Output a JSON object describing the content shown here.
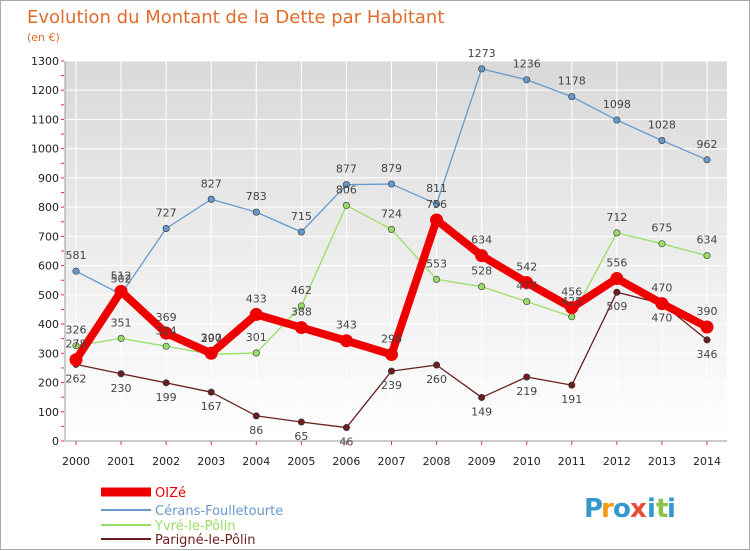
{
  "chart_data": {
    "type": "line",
    "title": "Evolution du Montant de la Dette par Habitant",
    "subtitle": "(en €)",
    "xlabel": "",
    "ylabel": "",
    "ylim": [
      0,
      1300
    ],
    "yticks": [
      0,
      100,
      200,
      300,
      400,
      500,
      600,
      700,
      800,
      900,
      1000,
      1100,
      1200,
      1300
    ],
    "categories": [
      "2000",
      "2001",
      "2002",
      "2003",
      "2004",
      "2005",
      "2006",
      "2007",
      "2008",
      "2009",
      "2010",
      "2011",
      "2012",
      "2013",
      "2014"
    ],
    "grid": true,
    "legend_position": "bottom-left",
    "series": [
      {
        "name": "OIZé",
        "color": "#ee0000",
        "values": [
          278,
          512,
          369,
          300,
          433,
          388,
          343,
          296,
          756,
          634,
          542,
          456,
          556,
          470,
          390
        ]
      },
      {
        "name": "Cérans-Foulletourte",
        "color": "#6699cc",
        "values": [
          581,
          502,
          727,
          827,
          783,
          715,
          877,
          879,
          811,
          1273,
          1236,
          1178,
          1098,
          1028,
          962
        ]
      },
      {
        "name": "Yvré-le-Pôlin",
        "color": "#99dd66",
        "values": [
          326,
          351,
          324,
          297,
          301,
          462,
          806,
          724,
          553,
          528,
          477,
          425,
          712,
          675,
          634
        ]
      },
      {
        "name": "Parigné-le-Pôlin",
        "color": "#6b1f1f",
        "values": [
          262,
          230,
          199,
          167,
          86,
          65,
          46,
          239,
          260,
          149,
          219,
          191,
          509,
          470,
          346
        ]
      }
    ]
  },
  "logo": {
    "letters": [
      "P",
      "r",
      "o",
      "x",
      "i",
      "t",
      "i"
    ],
    "colors": [
      "#3399cc",
      "#f39c12",
      "#3399cc",
      "#e74c3c",
      "#3399cc",
      "#8bc34a",
      "#3399cc"
    ]
  }
}
